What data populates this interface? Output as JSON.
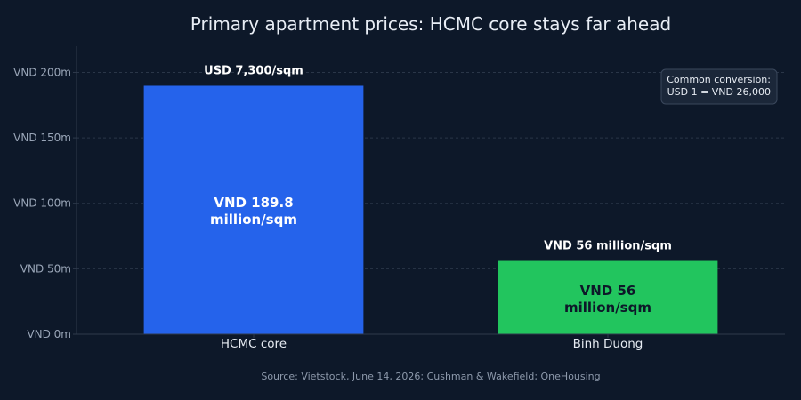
{
  "chart_data": {
    "type": "bar",
    "title": "Primary apartment prices: HCMC core stays far ahead",
    "categories": [
      "HCMC core",
      "Binh Duong"
    ],
    "values": [
      189.8,
      56
    ],
    "unit": "VND million/sqm",
    "ylim": [
      0,
      220
    ],
    "yticks": [
      0,
      50,
      100,
      150,
      200
    ],
    "ytick_labels": [
      "VND 0m",
      "VND 50m",
      "VND 100m",
      "VND 150m",
      "VND 200m"
    ],
    "bar_labels": [
      {
        "inside": [
          "VND 189.8",
          "million/sqm"
        ],
        "above": "USD 7,300/sqm"
      },
      {
        "inside": [
          "VND 56",
          "million/sqm"
        ],
        "above": "VND 56 million/sqm"
      }
    ],
    "colors": [
      "#2563eb",
      "#22c55e"
    ],
    "grid": true,
    "note": [
      "Common conversion:",
      "USD 1 = VND 26,000"
    ],
    "source": "Source: Vietstock, June 14, 2026; Cushman & Wakefield; OneHousing"
  }
}
